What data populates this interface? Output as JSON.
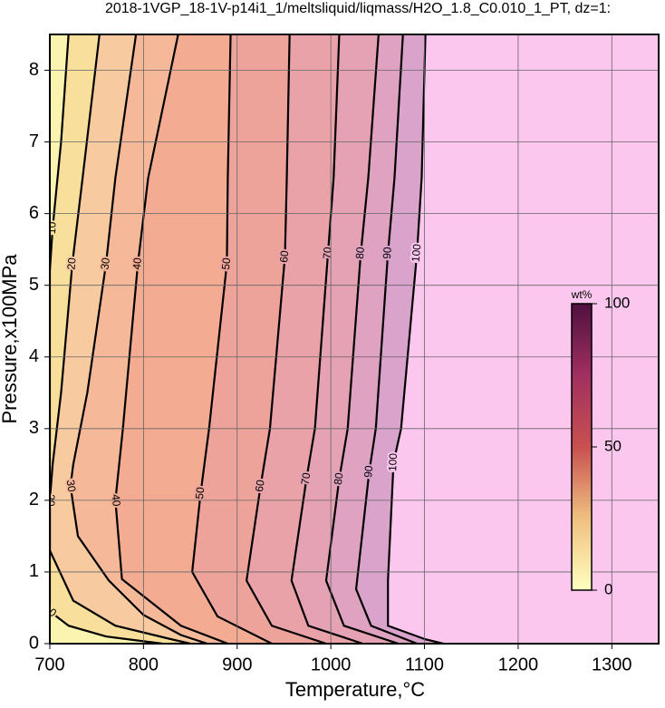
{
  "chart_data": {
    "type": "contour",
    "title": "2018-1VGP_18-1V-p14i1_1/meltsliquid/liqmass/H2O_1.8_C0.010_1_PT, dz=1:",
    "x_label": "Temperature,°C",
    "y_label": "Pressure,x100MPa",
    "xlim": [
      700,
      1350
    ],
    "ylim": [
      0,
      8.5
    ],
    "xticks": [
      700,
      800,
      900,
      1000,
      1100,
      1200,
      1300
    ],
    "yticks": [
      0,
      1,
      2,
      3,
      4,
      5,
      6,
      7,
      8
    ],
    "grid": true,
    "low_color": "#fbf3b0",
    "contours": [
      {
        "level": 10,
        "color": "#f9df9c",
        "x": [
          720,
          712,
          703,
          700,
          700,
          720,
          760,
          820
        ],
        "y": [
          8.5,
          7,
          5.8,
          5.2,
          0.45,
          0.25,
          0.1,
          0
        ]
      },
      {
        "level": 20,
        "color": "#f7caa0",
        "x": [
          753,
          735,
          724,
          712,
          703,
          700,
          700,
          725,
          770,
          830,
          850
        ],
        "y": [
          8.5,
          6.5,
          5.3,
          3.5,
          2.5,
          2,
          1.3,
          0.6,
          0.25,
          0.06,
          0
        ]
      },
      {
        "level": 30,
        "color": "#f5b99a",
        "x": [
          792,
          770,
          760,
          740,
          725,
          722,
          730,
          763,
          800,
          840,
          868
        ],
        "y": [
          8.5,
          6.5,
          5.3,
          3.5,
          2.5,
          2.2,
          1.5,
          0.88,
          0.4,
          0.12,
          0
        ]
      },
      {
        "level": 40,
        "color": "#f3ab92",
        "x": [
          837,
          805,
          794,
          778,
          770,
          777,
          840,
          890
        ],
        "y": [
          8.5,
          6.5,
          5.3,
          3,
          2,
          0.9,
          0.25,
          0
        ]
      },
      {
        "level": 50,
        "color": "#eea39a",
        "x": [
          893,
          890,
          889,
          870,
          861,
          852,
          879,
          937
        ],
        "y": [
          8.5,
          6.5,
          5.3,
          3,
          2.1,
          1,
          0.38,
          0
        ]
      },
      {
        "level": 60,
        "color": "#e9a2a8",
        "x": [
          956,
          953,
          951,
          935,
          925,
          910,
          937,
          995
        ],
        "y": [
          8.5,
          6.5,
          5.4,
          3,
          2.2,
          0.88,
          0.25,
          0
        ]
      },
      {
        "level": 70,
        "color": "#e4a2b4",
        "x": [
          1009,
          1003,
          997,
          983,
          974,
          958,
          976,
          1034
        ],
        "y": [
          8.5,
          6.5,
          5.45,
          3,
          2.3,
          0.88,
          0.25,
          0
        ]
      },
      {
        "level": 80,
        "color": "#dfa2c0",
        "x": [
          1051,
          1040,
          1032,
          1018,
          1009,
          995,
          1014,
          1072
        ],
        "y": [
          8.5,
          6.5,
          5.45,
          3,
          2.3,
          0.88,
          0.25,
          0
        ]
      },
      {
        "level": 90,
        "color": "#d9a3cb",
        "x": [
          1077,
          1068,
          1061,
          1048,
          1041,
          1027,
          1043,
          1092
        ],
        "y": [
          8.5,
          6.5,
          5.45,
          3,
          2.4,
          0.76,
          0.25,
          0
        ]
      },
      {
        "level": 100,
        "color": "#fbc7ee",
        "x": [
          1101,
          1097,
          1092,
          1075,
          1067,
          1061,
          1061,
          1101,
          1120
        ],
        "y": [
          8.5,
          6.5,
          5.45,
          3,
          2.53,
          0.88,
          0.25,
          0.06,
          0
        ]
      }
    ],
    "colorbar": {
      "label": "wt%",
      "lim": [
        0,
        100
      ],
      "ticks": [
        0,
        50,
        100
      ],
      "colors": [
        "#ffffc0",
        "#f0c080",
        "#c85050",
        "#a03060",
        "#501040"
      ]
    }
  }
}
